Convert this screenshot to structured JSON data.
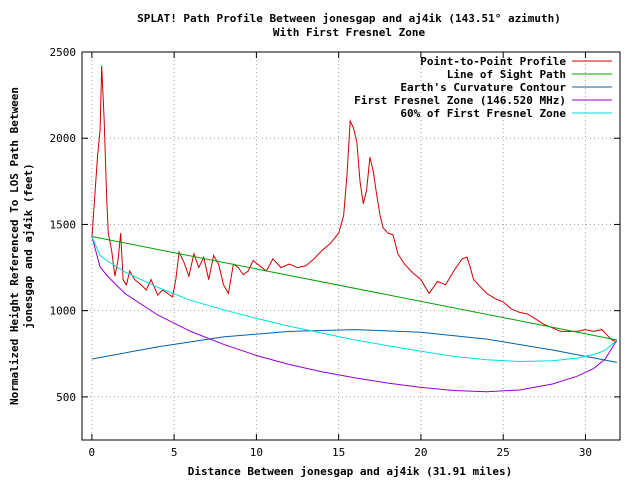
{
  "chart_data": {
    "type": "line",
    "title": "SPLAT! Path Profile Between jonesgap and aj4ik (143.51° azimuth)",
    "subtitle": "With First Fresnel Zone",
    "xlabel": "Distance Between jonesgap and aj4ik (31.91 miles)",
    "ylabel_line1": "Normalized Height Referenced To LOS Path Between",
    "ylabel_line2": "jonesgap and aj4ik (feet)",
    "xlim": [
      -0.6,
      32.1
    ],
    "ylim": [
      250,
      2500
    ],
    "x_ticks": [
      0,
      5,
      10,
      15,
      20,
      25,
      30
    ],
    "y_ticks": [
      500,
      1000,
      1500,
      2000,
      2500
    ],
    "grid": true,
    "legend_position": "top-right",
    "series": [
      {
        "name": "Point-to-Point Profile",
        "color": "#d00000",
        "x": [
          0,
          0.2,
          0.35,
          0.5,
          0.6,
          0.75,
          0.9,
          1.0,
          1.2,
          1.4,
          1.6,
          1.75,
          1.9,
          2.1,
          2.3,
          2.6,
          3.0,
          3.3,
          3.6,
          4.0,
          4.3,
          4.6,
          4.9,
          5.1,
          5.3,
          5.6,
          5.9,
          6.2,
          6.5,
          6.8,
          7.1,
          7.4,
          7.7,
          8.0,
          8.3,
          8.6,
          8.9,
          9.2,
          9.5,
          9.8,
          10.2,
          10.6,
          11.0,
          11.5,
          12.0,
          12.5,
          13.0,
          13.5,
          14.0,
          14.5,
          15.0,
          15.3,
          15.5,
          15.7,
          15.9,
          16.1,
          16.3,
          16.5,
          16.7,
          16.9,
          17.1,
          17.3,
          17.5,
          17.7,
          18.0,
          18.3,
          18.6,
          19.0,
          19.5,
          20.0,
          20.5,
          21.0,
          21.5,
          22.0,
          22.5,
          22.8,
          23.0,
          23.2,
          23.5,
          24.0,
          24.5,
          25.0,
          25.5,
          26.0,
          26.5,
          27.0,
          27.5,
          28.0,
          28.5,
          29.0,
          29.5,
          30.0,
          30.5,
          31.0,
          31.3,
          31.6,
          31.91
        ],
        "y": [
          1420,
          1700,
          1900,
          2050,
          2420,
          2100,
          1650,
          1450,
          1350,
          1200,
          1300,
          1450,
          1180,
          1150,
          1230,
          1180,
          1150,
          1120,
          1180,
          1090,
          1120,
          1100,
          1080,
          1180,
          1340,
          1280,
          1200,
          1330,
          1250,
          1310,
          1180,
          1320,
          1270,
          1150,
          1100,
          1270,
          1250,
          1210,
          1230,
          1290,
          1260,
          1230,
          1300,
          1250,
          1270,
          1250,
          1260,
          1300,
          1350,
          1390,
          1450,
          1550,
          1780,
          2100,
          2060,
          1980,
          1750,
          1620,
          1700,
          1890,
          1810,
          1680,
          1560,
          1480,
          1450,
          1440,
          1330,
          1270,
          1220,
          1180,
          1100,
          1170,
          1150,
          1230,
          1300,
          1310,
          1250,
          1180,
          1150,
          1100,
          1070,
          1050,
          1010,
          990,
          980,
          950,
          920,
          900,
          880,
          880,
          880,
          890,
          880,
          890,
          860,
          830,
          820
        ]
      },
      {
        "name": "Line of Sight Path",
        "color": "#00a000",
        "x": [
          0,
          31.91
        ],
        "y": [
          1430,
          830
        ]
      },
      {
        "name": "Earth's Curvature Contour",
        "color": "#0060ad",
        "x": [
          0,
          4,
          8,
          12,
          16,
          20,
          24,
          28,
          31.91
        ],
        "y": [
          720,
          790,
          848,
          880,
          890,
          875,
          835,
          772,
          700
        ]
      },
      {
        "name": "First Fresnel Zone (146.520 MHz)",
        "color": "#9400d3",
        "x": [
          0,
          0.5,
          1,
          2,
          4,
          6,
          8,
          10,
          12,
          14,
          16,
          18,
          20,
          22,
          24,
          26,
          28,
          29.5,
          30.5,
          31.2,
          31.91
        ],
        "y": [
          1430,
          1253,
          1195,
          1100,
          975,
          880,
          805,
          740,
          688,
          645,
          610,
          580,
          555,
          537,
          530,
          540,
          575,
          620,
          665,
          720,
          830
        ]
      },
      {
        "name": "60% of First Fresnel Zone",
        "color": "#00dede",
        "x": [
          0,
          0.5,
          1,
          2,
          4,
          6,
          8,
          10,
          12,
          14,
          16,
          18,
          20,
          22,
          24,
          26,
          28,
          29.5,
          30.5,
          31.2,
          31.91
        ],
        "y": [
          1430,
          1320,
          1285,
          1225,
          1135,
          1060,
          1005,
          955,
          910,
          870,
          830,
          797,
          765,
          735,
          715,
          705,
          710,
          725,
          745,
          770,
          830
        ]
      }
    ]
  }
}
